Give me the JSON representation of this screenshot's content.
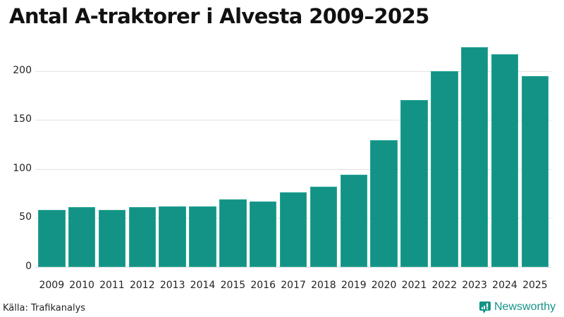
{
  "title": "Antal A-traktorer i Alvesta 2009–2025",
  "source": "Källa: Trafikanalys",
  "brand": {
    "name": "Newsworthy",
    "icon": "bar-chart-speech-bubble-icon",
    "color": "#139386"
  },
  "colors": {
    "bar": "#139386",
    "grid": "#e2e2e6",
    "text": "#222222"
  },
  "yaxis": {
    "ticks": [
      "0",
      "50",
      "100",
      "150",
      "200"
    ]
  },
  "chart_data": {
    "type": "bar",
    "title": "Antal A-traktorer i Alvesta 2009–2025",
    "xlabel": "",
    "ylabel": "",
    "categories": [
      "2009",
      "2010",
      "2011",
      "2012",
      "2013",
      "2014",
      "2015",
      "2016",
      "2017",
      "2018",
      "2019",
      "2020",
      "2021",
      "2022",
      "2023",
      "2024",
      "2025"
    ],
    "values": [
      58,
      61,
      58,
      61,
      62,
      62,
      69,
      67,
      76,
      82,
      94,
      129,
      170,
      200,
      224,
      217,
      195
    ],
    "ylim": [
      0,
      230
    ],
    "yticks": [
      0,
      50,
      100,
      150,
      200
    ],
    "grid": true,
    "legend": null,
    "source": "Källa: Trafikanalys"
  }
}
